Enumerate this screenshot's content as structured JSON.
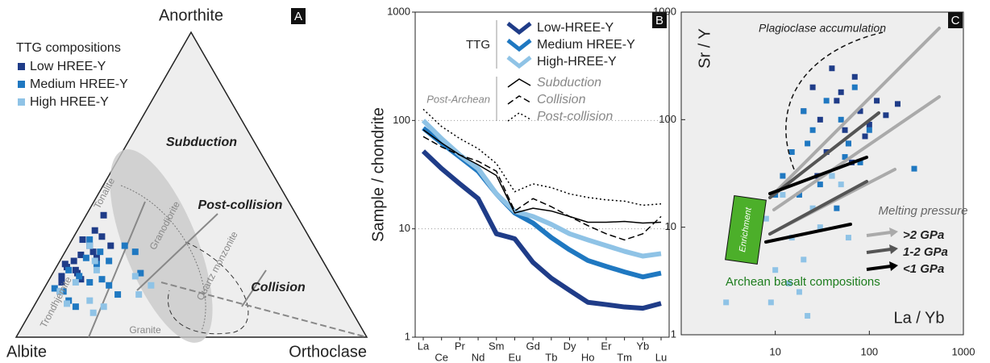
{
  "chart_data": [
    {
      "type": "ternary",
      "panel": "A",
      "corners": {
        "top": "Anorthite",
        "left": "Albite",
        "right": "Orthoclase"
      },
      "legend_title": "TTG compositions",
      "series": [
        {
          "name": "Low HREE-Y",
          "color": "#1f3c88",
          "an": [
            25,
            30,
            20,
            35,
            28,
            22,
            18,
            32,
            26,
            40,
            24,
            15,
            30,
            21,
            27,
            33,
            19,
            23
          ],
          "or": [
            4,
            6,
            3,
            5,
            8,
            6,
            4,
            3,
            10,
            5,
            2,
            5,
            12,
            7,
            5,
            8,
            9,
            3
          ]
        },
        {
          "name": "Medium HREE-Y",
          "color": "#1f78c1",
          "an": [
            20,
            28,
            15,
            25,
            18,
            32,
            12,
            22,
            30,
            17,
            26,
            14,
            24,
            19,
            10,
            28,
            21,
            16
          ],
          "or": [
            8,
            10,
            6,
            14,
            12,
            5,
            9,
            4,
            16,
            18,
            7,
            22,
            11,
            15,
            12,
            20,
            25,
            3
          ]
        },
        {
          "name": "High HREE-Y",
          "color": "#8fc3e6",
          "an": [
            12,
            18,
            22,
            10,
            15,
            25,
            8,
            20,
            14,
            30,
            17,
            11
          ],
          "or": [
            15,
            8,
            12,
            20,
            5,
            10,
            18,
            24,
            28,
            6,
            30,
            9
          ]
        }
      ],
      "field_labels": [
        "Subduction",
        "Post-collision",
        "Collision"
      ],
      "rock_labels": [
        "Tonalite",
        "Granodiorite",
        "Quartz monzonite",
        "Trondhjemite",
        "Granite"
      ]
    },
    {
      "type": "line",
      "panel": "B",
      "ylabel": "Sample / chondrite",
      "log_y": true,
      "categories": [
        "La",
        "Ce",
        "Pr",
        "Nd",
        "Sm",
        "Eu",
        "Gd",
        "Tb",
        "Dy",
        "Ho",
        "Er",
        "Tm",
        "Yb",
        "Lu"
      ],
      "ylim": [
        1,
        1000
      ],
      "yticks": [
        1,
        10,
        100,
        1000
      ],
      "grid": true,
      "legend_groups": [
        "TTG",
        "Post-Archean"
      ],
      "series": [
        {
          "name": "Low-HREE-Y",
          "color": "#1f3c88",
          "group": 0,
          "dash": "solid",
          "values": [
            52,
            36,
            26,
            19,
            9,
            8.1,
            4.9,
            3.5,
            2.7,
            2.1,
            2.0,
            1.9,
            1.85,
            2.05
          ]
        },
        {
          "name": "Medium HREE-Y",
          "color": "#1f78c1",
          "group": 0,
          "dash": "solid",
          "values": [
            85,
            62,
            46,
            34,
            21,
            14,
            11.3,
            8.3,
            6.4,
            5.1,
            4.5,
            4.0,
            3.6,
            3.9
          ]
        },
        {
          "name": "High-HREE-Y",
          "color": "#8fc3e6",
          "group": 0,
          "dash": "solid",
          "values": [
            100,
            68,
            48,
            36,
            21,
            14.5,
            13,
            11,
            9,
            7.9,
            7,
            6.2,
            5.6,
            5.9
          ]
        },
        {
          "name": "Subduction",
          "color": "#000000",
          "group": 1,
          "dash": "solid",
          "values": [
            82,
            62,
            48,
            39,
            31,
            14,
            15.5,
            14.6,
            13,
            11.5,
            11.5,
            11.7,
            11.3,
            11.5
          ]
        },
        {
          "name": "Collision",
          "color": "#000000",
          "group": 1,
          "dash": "dashed",
          "values": [
            71,
            57,
            48,
            42,
            34,
            14.6,
            19,
            16,
            13,
            10.7,
            9,
            7.9,
            9,
            13
          ]
        },
        {
          "name": "Post-collision",
          "color": "#000000",
          "group": 1,
          "dash": "dotted",
          "values": [
            127,
            88,
            68,
            55,
            40,
            22,
            26,
            24,
            21,
            19.5,
            18.5,
            18,
            16.5,
            17
          ]
        }
      ]
    },
    {
      "type": "scatter",
      "panel": "C",
      "xlabel": "La / Yb",
      "ylabel": "Sr / Y",
      "log_x": true,
      "log_y": true,
      "xlim": [
        1,
        1000
      ],
      "ylim": [
        1,
        1000
      ],
      "xticks": [
        10,
        100,
        1000
      ],
      "yticks": [
        1,
        10,
        100,
        1000
      ],
      "series": [
        {
          "name": "Low HREE-Y",
          "color": "#1f3c88",
          "x": [
            30,
            45,
            60,
            25,
            80,
            100,
            40,
            55,
            120,
            35,
            70,
            150,
            20,
            90,
            50,
            65,
            200,
            28
          ],
          "y": [
            100,
            150,
            60,
            200,
            120,
            90,
            300,
            80,
            150,
            50,
            250,
            110,
            120,
            70,
            180,
            40,
            140,
            30
          ]
        },
        {
          "name": "Medium HREE-Y",
          "color": "#1f78c1",
          "x": [
            15,
            25,
            40,
            20,
            60,
            30,
            80,
            12,
            50,
            35,
            100,
            18,
            45,
            70,
            300,
            22,
            10,
            55
          ],
          "y": [
            50,
            80,
            30,
            120,
            60,
            25,
            40,
            30,
            100,
            150,
            80,
            20,
            15,
            200,
            35,
            60,
            20,
            45
          ]
        },
        {
          "name": "High HREE-Y",
          "color": "#8fc3e6",
          "x": [
            8,
            12,
            15,
            20,
            25,
            10,
            30,
            40,
            18,
            9,
            50,
            60,
            14,
            6,
            3,
            22
          ],
          "y": [
            12,
            20,
            8,
            5,
            15,
            4,
            10,
            30,
            2.5,
            2,
            25,
            8,
            3,
            6,
            2,
            1.5
          ]
        }
      ],
      "annotations": [
        "Plagioclase accumulation",
        "Archean basalt compositions",
        "Enrichment"
      ],
      "pressure_legend": {
        "title": "Melting pressure",
        "items": [
          {
            "label": ">2 GPa",
            "color": "#aaaaaa"
          },
          {
            "label": "1-2 GPa",
            "color": "#555555"
          },
          {
            "label": "<1 GPa",
            "color": "#000000"
          }
        ]
      }
    }
  ]
}
